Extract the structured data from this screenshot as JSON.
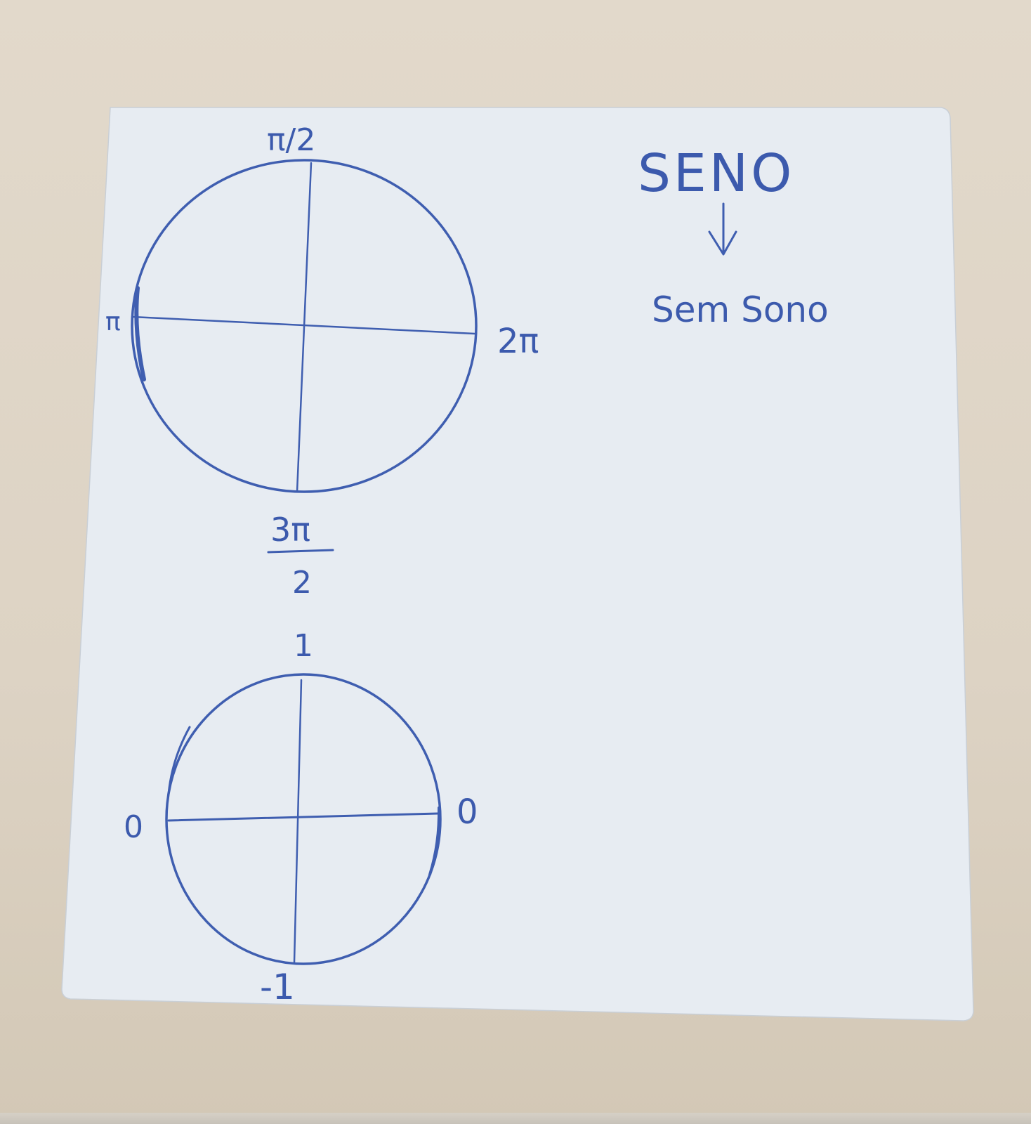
{
  "notes": {
    "top_circle": {
      "label_top": "π/2",
      "label_left": "π",
      "label_right": "2π",
      "label_bottom_numerator": "3π",
      "label_bottom_denominator": "2"
    },
    "heading": {
      "title": "SENO",
      "subtitle": "Sem Sono"
    },
    "bottom_circle": {
      "label_top": "1",
      "label_left": "0",
      "label_right": "0",
      "label_bottom": "-1"
    }
  },
  "colors": {
    "ink": "#3f5eb0",
    "paper": "#e7ecf2",
    "table": "#ddd3c4"
  }
}
